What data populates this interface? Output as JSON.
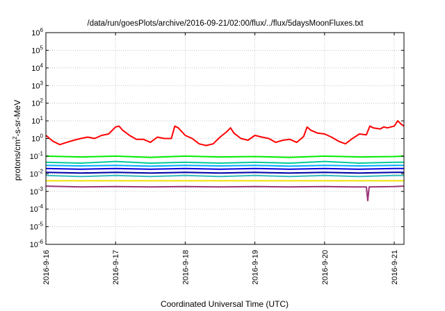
{
  "chart_data": {
    "type": "line",
    "title": "/data/run/goesPlots/archive/2016-09-21/02:00/flux/../flux/5daysMoonFluxes.txt",
    "xlabel": "Coordinated Universal Time (UTC)",
    "ylabel_parts": [
      "protons/cm",
      "2",
      "-s-sr-MeV"
    ],
    "yscale": "log",
    "ylim": [
      1e-06,
      1000000.0
    ],
    "y_ticks": [
      {
        "base": "10",
        "exp": "-6",
        "value": 1e-06
      },
      {
        "base": "10",
        "exp": "-5",
        "value": 1e-05
      },
      {
        "base": "10",
        "exp": "-4",
        "value": 0.0001
      },
      {
        "base": "10",
        "exp": "-3",
        "value": 0.001
      },
      {
        "base": "10",
        "exp": "-2",
        "value": 0.01
      },
      {
        "base": "10",
        "exp": "-1",
        "value": 0.1
      },
      {
        "base": "10",
        "exp": "0",
        "value": 1
      },
      {
        "base": "10",
        "exp": "1",
        "value": 10
      },
      {
        "base": "10",
        "exp": "2",
        "value": 100
      },
      {
        "base": "10",
        "exp": "3",
        "value": 1000
      },
      {
        "base": "10",
        "exp": "4",
        "value": 10000
      },
      {
        "base": "10",
        "exp": "5",
        "value": 100000
      },
      {
        "base": "10",
        "exp": "6",
        "value": 1000000
      }
    ],
    "x_ticks": [
      "2016-9-16",
      "2016-9-17",
      "2016-9-18",
      "2016-9-19",
      "2016-9-20",
      "2016-9-21"
    ],
    "x_range_days": [
      0,
      5.14
    ],
    "grid": true,
    "legend": "none",
    "series": [
      {
        "color": "#ff0000",
        "x": [
          0,
          0.1,
          0.2,
          0.3,
          0.4,
          0.5,
          0.6,
          0.7,
          0.8,
          0.9,
          1.0,
          1.05,
          1.1,
          1.2,
          1.3,
          1.4,
          1.5,
          1.6,
          1.7,
          1.8,
          1.85,
          1.9,
          2.0,
          2.1,
          2.2,
          2.3,
          2.4,
          2.5,
          2.6,
          2.65,
          2.7,
          2.8,
          2.9,
          3.0,
          3.1,
          3.2,
          3.3,
          3.4,
          3.5,
          3.6,
          3.7,
          3.75,
          3.8,
          3.9,
          4.0,
          4.1,
          4.2,
          4.3,
          4.4,
          4.5,
          4.6,
          4.65,
          4.7,
          4.8,
          4.85,
          4.9,
          5.0,
          5.05,
          5.1,
          5.14
        ],
        "y": [
          1.5,
          0.7,
          0.45,
          0.6,
          0.8,
          1.0,
          1.2,
          1.0,
          1.5,
          1.8,
          4.5,
          5.0,
          3.0,
          1.5,
          0.9,
          0.9,
          0.6,
          1.2,
          1.0,
          1.0,
          5.0,
          4.0,
          1.5,
          1.0,
          0.5,
          0.4,
          0.5,
          1.2,
          2.5,
          4.0,
          2.0,
          1.0,
          0.8,
          1.5,
          1.2,
          1.0,
          0.6,
          0.8,
          0.9,
          0.6,
          1.3,
          4.5,
          3.0,
          2.0,
          1.8,
          1.2,
          0.7,
          0.5,
          1.0,
          1.8,
          1.6,
          5.0,
          4.0,
          3.5,
          4.5,
          4.0,
          5.0,
          10.0,
          6.5,
          5.0
        ]
      },
      {
        "color": "#00ee00",
        "x": [
          0,
          0.5,
          1.0,
          1.5,
          2.0,
          2.5,
          3.0,
          3.5,
          4.0,
          4.5,
          5.0,
          5.14
        ],
        "y": [
          0.1,
          0.09,
          0.1,
          0.085,
          0.1,
          0.09,
          0.095,
          0.085,
          0.1,
          0.09,
          0.095,
          0.1
        ]
      },
      {
        "color": "#00cc99",
        "x": [
          0,
          0.5,
          1.0,
          1.5,
          2.0,
          2.5,
          3.0,
          3.5,
          4.0,
          4.5,
          5.0,
          5.14
        ],
        "y": [
          0.045,
          0.04,
          0.05,
          0.04,
          0.045,
          0.04,
          0.045,
          0.04,
          0.05,
          0.04,
          0.045,
          0.045
        ]
      },
      {
        "color": "#00aaff",
        "x": [
          0,
          0.5,
          1.0,
          1.5,
          2.0,
          2.5,
          3.0,
          3.5,
          4.0,
          4.5,
          5.0,
          5.14
        ],
        "y": [
          0.03,
          0.028,
          0.03,
          0.027,
          0.03,
          0.028,
          0.03,
          0.027,
          0.03,
          0.028,
          0.03,
          0.03
        ]
      },
      {
        "color": "#0000dd",
        "x": [
          0,
          0.5,
          1.0,
          1.5,
          2.0,
          2.5,
          3.0,
          3.5,
          4.0,
          4.5,
          5.0,
          5.14
        ],
        "y": [
          0.02,
          0.018,
          0.02,
          0.018,
          0.02,
          0.018,
          0.02,
          0.018,
          0.02,
          0.018,
          0.02,
          0.02
        ]
      },
      {
        "color": "#0000aa",
        "x": [
          0,
          0.5,
          1.0,
          1.5,
          2.0,
          2.5,
          3.0,
          3.5,
          4.0,
          4.5,
          5.0,
          5.14
        ],
        "y": [
          0.012,
          0.011,
          0.012,
          0.011,
          0.012,
          0.011,
          0.012,
          0.011,
          0.012,
          0.011,
          0.012,
          0.012
        ]
      },
      {
        "color": "#33bbbb",
        "x": [
          0,
          0.5,
          1.0,
          1.5,
          2.0,
          2.5,
          3.0,
          3.5,
          4.0,
          4.5,
          5.0,
          5.14
        ],
        "y": [
          0.008,
          0.007,
          0.008,
          0.007,
          0.008,
          0.007,
          0.008,
          0.007,
          0.008,
          0.007,
          0.008,
          0.008
        ]
      },
      {
        "color": "#f0e000",
        "x": [
          0,
          0.5,
          1.0,
          1.5,
          2.0,
          2.5,
          3.0,
          3.5,
          4.0,
          4.5,
          5.0,
          5.14
        ],
        "y": [
          0.004,
          0.004,
          0.004,
          0.004,
          0.004,
          0.004,
          0.004,
          0.004,
          0.004,
          0.004,
          0.004,
          0.004
        ]
      },
      {
        "color": "#993377",
        "x": [
          0,
          0.5,
          1.0,
          1.5,
          2.0,
          2.5,
          3.0,
          3.5,
          4.0,
          4.5,
          4.6,
          4.62,
          4.64,
          5.0,
          5.14
        ],
        "y": [
          0.002,
          0.0018,
          0.0019,
          0.0018,
          0.0019,
          0.0018,
          0.0019,
          0.0018,
          0.0019,
          0.0018,
          0.0018,
          0.0003,
          0.0018,
          0.0019,
          0.002
        ]
      }
    ]
  }
}
